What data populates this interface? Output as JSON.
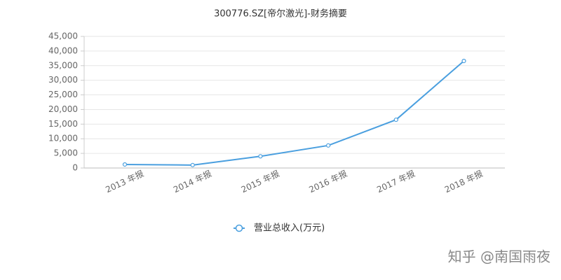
{
  "chart_data": {
    "type": "line",
    "title": "300776.SZ[帝尔激光]-财务摘要",
    "categories": [
      "2013 年报",
      "2014 年报",
      "2015 年报",
      "2016 年报",
      "2017 年报",
      "2018 年报"
    ],
    "series": [
      {
        "name": "营业总收入(万元)",
        "color": "#4a9fdf",
        "values": [
          1200,
          1000,
          4000,
          7700,
          16500,
          36600
        ]
      }
    ],
    "ylim": [
      0,
      45000
    ],
    "yticks": [
      0,
      {
        "value": 5000,
        "label": "5,000"
      },
      {
        "value": 10000,
        "label": "10,000"
      },
      {
        "value": 15000,
        "label": "15,000"
      },
      {
        "value": 20000,
        "label": "20,000"
      },
      {
        "value": 25000,
        "label": "25,000"
      },
      {
        "value": 30000,
        "label": "30,000"
      },
      {
        "value": 35000,
        "label": "35,000"
      },
      {
        "value": 40000,
        "label": "40,000"
      },
      {
        "value": 45000,
        "label": "45,000"
      }
    ],
    "grid": true,
    "watermark": "知乎 @南国雨夜"
  }
}
